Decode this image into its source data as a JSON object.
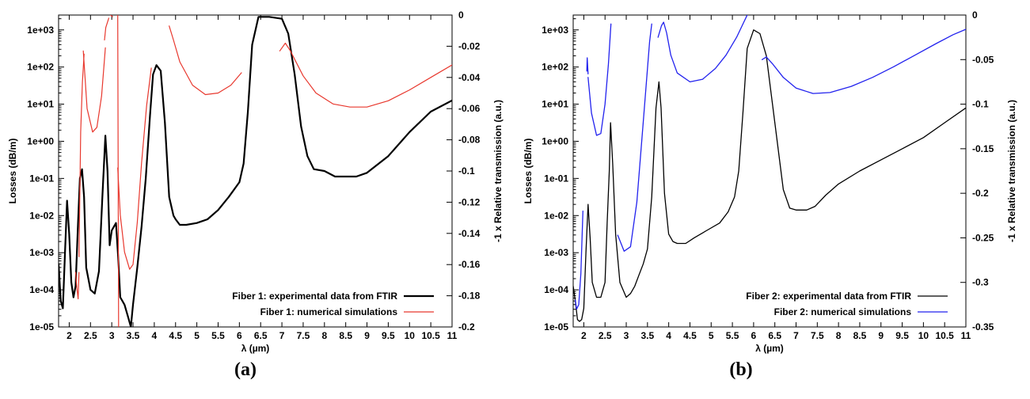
{
  "chart_data": [
    {
      "panel": "(a)",
      "type": "line",
      "xlabel": "λ (µm)",
      "ylabel_left": "Losses (dB/m)",
      "ylabel_right": "-1 x Relative transmission (a.u.)",
      "x_ticks": [
        "2",
        "2.5",
        "3",
        "3.5",
        "4",
        "4.5",
        "5",
        "5.5",
        "6",
        "6.5",
        "7",
        "7.5",
        "8",
        "8.5",
        "9",
        "9.5",
        "10",
        "10.5",
        "11"
      ],
      "y_left_ticks": [
        "1e-05",
        "1e-04",
        "1e-03",
        "1e-02",
        "1e-01",
        "1e+00",
        "1e+01",
        "1e+02",
        "1e+03"
      ],
      "y_right_ticks": [
        "0",
        "-0.02",
        "-0.04",
        "-0.06",
        "-0.08",
        "-0.1",
        "-0.12",
        "-0.14",
        "-0.16",
        "-0.18",
        "-0.2"
      ],
      "xlim": [
        1.75,
        11
      ],
      "ylim_left_log10": [
        -5,
        3.4
      ],
      "ylim_right": [
        -0.2,
        0
      ],
      "grid": false,
      "legend_position": "bottom-right",
      "series": [
        {
          "name": "Fiber 1: experimental data from FTIR",
          "axis": "left",
          "color": "#000000",
          "stroke_width": 2.2,
          "log10_points": [
            [
              1.75,
              -3.3
            ],
            [
              1.8,
              -4.3
            ],
            [
              1.85,
              -4.5
            ],
            [
              1.9,
              -3.0
            ],
            [
              1.95,
              -1.6
            ],
            [
              2.0,
              -2.5
            ],
            [
              2.05,
              -3.8
            ],
            [
              2.1,
              -4.2
            ],
            [
              2.15,
              -3.9
            ],
            [
              2.2,
              -2.4
            ],
            [
              2.25,
              -1.0
            ],
            [
              2.3,
              -0.75
            ],
            [
              2.35,
              -1.5
            ],
            [
              2.4,
              -3.4
            ],
            [
              2.5,
              -4.0
            ],
            [
              2.6,
              -4.1
            ],
            [
              2.7,
              -3.5
            ],
            [
              2.78,
              -1.5
            ],
            [
              2.85,
              0.15
            ],
            [
              2.9,
              -0.8
            ],
            [
              2.95,
              -2.8
            ],
            [
              3.0,
              -2.4
            ],
            [
              3.05,
              -2.3
            ],
            [
              3.1,
              -2.2
            ],
            [
              3.15,
              -3.1
            ],
            [
              3.2,
              -4.2
            ],
            [
              3.3,
              -4.4
            ],
            [
              3.4,
              -4.8
            ],
            [
              3.45,
              -5.0
            ],
            [
              3.5,
              -4.4
            ],
            [
              3.6,
              -3.4
            ],
            [
              3.7,
              -2.3
            ],
            [
              3.8,
              -1.0
            ],
            [
              3.9,
              0.7
            ],
            [
              3.97,
              1.8
            ],
            [
              4.05,
              2.05
            ],
            [
              4.15,
              1.9
            ],
            [
              4.25,
              0.5
            ],
            [
              4.35,
              -1.5
            ],
            [
              4.45,
              -2.0
            ],
            [
              4.5,
              -2.1
            ],
            [
              4.6,
              -2.25
            ],
            [
              4.75,
              -2.25
            ],
            [
              5.0,
              -2.2
            ],
            [
              5.25,
              -2.1
            ],
            [
              5.5,
              -1.85
            ],
            [
              5.75,
              -1.5
            ],
            [
              6.0,
              -1.1
            ],
            [
              6.1,
              -0.6
            ],
            [
              6.2,
              0.8
            ],
            [
              6.3,
              2.6
            ],
            [
              6.45,
              3.35
            ],
            [
              6.7,
              3.35
            ],
            [
              7.0,
              3.3
            ],
            [
              7.15,
              2.9
            ],
            [
              7.3,
              1.8
            ],
            [
              7.45,
              0.4
            ],
            [
              7.6,
              -0.4
            ],
            [
              7.75,
              -0.75
            ],
            [
              8.0,
              -0.8
            ],
            [
              8.25,
              -0.95
            ],
            [
              8.5,
              -0.95
            ],
            [
              8.75,
              -0.95
            ],
            [
              9.0,
              -0.85
            ],
            [
              9.5,
              -0.4
            ],
            [
              10.0,
              0.25
            ],
            [
              10.5,
              0.8
            ],
            [
              11.0,
              1.1
            ]
          ]
        },
        {
          "name": "Fiber 1: numerical simulations",
          "axis": "right",
          "color": "#e8382e",
          "stroke_width": 1.2,
          "segments": [
            [
              [
                2.15,
                -0.165
              ],
              [
                2.18,
                -0.175
              ],
              [
                2.21,
                -0.182
              ],
              [
                2.23,
                -0.165
              ]
            ],
            [
              [
                2.23,
                -0.155
              ],
              [
                2.27,
                -0.075
              ],
              [
                2.31,
                -0.043
              ],
              [
                2.35,
                -0.025
              ]
            ],
            [
              [
                2.33,
                -0.023
              ],
              [
                2.42,
                -0.06
              ],
              [
                2.55,
                -0.075
              ],
              [
                2.65,
                -0.072
              ],
              [
                2.76,
                -0.052
              ],
              [
                2.85,
                -0.021
              ]
            ],
            [
              [
                2.83,
                -0.016
              ],
              [
                2.86,
                -0.008
              ],
              [
                2.93,
                -0.002
              ]
            ],
            [
              [
                2.97,
                0.0
              ],
              [
                3.02,
                -0.001
              ]
            ],
            [
              [
                3.14,
                0.0
              ],
              [
                3.16,
                -0.2
              ]
            ],
            [
              [
                3.14,
                -0.098
              ],
              [
                3.2,
                -0.128
              ],
              [
                3.3,
                -0.152
              ],
              [
                3.42,
                -0.163
              ],
              [
                3.5,
                -0.16
              ],
              [
                3.6,
                -0.133
              ],
              [
                3.7,
                -0.095
              ],
              [
                3.82,
                -0.058
              ],
              [
                3.93,
                -0.034
              ]
            ],
            [
              [
                4.35,
                -0.007
              ],
              [
                4.45,
                -0.016
              ],
              [
                4.6,
                -0.03
              ],
              [
                4.9,
                -0.045
              ],
              [
                5.2,
                -0.051
              ],
              [
                5.5,
                -0.05
              ],
              [
                5.8,
                -0.045
              ],
              [
                6.05,
                -0.037
              ]
            ],
            [
              [
                6.95,
                -0.023
              ],
              [
                7.08,
                -0.018
              ],
              [
                7.2,
                -0.023
              ],
              [
                7.5,
                -0.039
              ],
              [
                7.8,
                -0.05
              ],
              [
                8.2,
                -0.057
              ],
              [
                8.6,
                -0.059
              ],
              [
                9.0,
                -0.059
              ],
              [
                9.5,
                -0.055
              ],
              [
                10.0,
                -0.048
              ],
              [
                10.5,
                -0.04
              ],
              [
                11.0,
                -0.032
              ]
            ]
          ]
        }
      ]
    },
    {
      "panel": "(b)",
      "type": "line",
      "xlabel": "λ (µm)",
      "ylabel_left": "Losses (dB/m)",
      "ylabel_right": "-1 x Relative transmission (a.u.)",
      "x_ticks": [
        "2",
        "2.5",
        "3",
        "3.5",
        "4",
        "4.5",
        "5",
        "5.5",
        "6",
        "6.5",
        "7",
        "7.5",
        "8",
        "8.5",
        "9",
        "9.5",
        "10",
        "10.5",
        "11"
      ],
      "y_left_ticks": [
        "1e-05",
        "1e-04",
        "1e-03",
        "1e-02",
        "1e-01",
        "1e+00",
        "1e+01",
        "1e+02",
        "1e+03"
      ],
      "y_right_ticks": [
        "0",
        "-0.05",
        "-0.1",
        "-0.15",
        "-0.2",
        "-0.25",
        "-0.3",
        "-0.35"
      ],
      "xlim": [
        1.75,
        11
      ],
      "ylim_left_log10": [
        -5,
        3.4
      ],
      "ylim_right": [
        -0.35,
        0
      ],
      "grid": false,
      "legend_position": "bottom-right",
      "series": [
        {
          "name": "Fiber 2: experimental data from FTIR",
          "axis": "left",
          "color": "#000000",
          "stroke_width": 1.3,
          "log10_points": [
            [
              1.75,
              -3.9
            ],
            [
              1.8,
              -4.3
            ],
            [
              1.85,
              -4.8
            ],
            [
              1.9,
              -4.85
            ],
            [
              1.95,
              -4.8
            ],
            [
              2.0,
              -4.5
            ],
            [
              2.05,
              -3.0
            ],
            [
              2.1,
              -1.7
            ],
            [
              2.15,
              -2.6
            ],
            [
              2.2,
              -3.8
            ],
            [
              2.3,
              -4.2
            ],
            [
              2.4,
              -4.2
            ],
            [
              2.5,
              -3.8
            ],
            [
              2.55,
              -2.2
            ],
            [
              2.6,
              -0.8
            ],
            [
              2.63,
              0.5
            ],
            [
              2.68,
              -0.6
            ],
            [
              2.75,
              -2.5
            ],
            [
              2.85,
              -3.8
            ],
            [
              3.0,
              -4.2
            ],
            [
              3.1,
              -4.1
            ],
            [
              3.2,
              -3.9
            ],
            [
              3.3,
              -3.6
            ],
            [
              3.4,
              -3.3
            ],
            [
              3.5,
              -2.9
            ],
            [
              3.6,
              -1.5
            ],
            [
              3.7,
              0.9
            ],
            [
              3.77,
              1.6
            ],
            [
              3.82,
              0.9
            ],
            [
              3.9,
              -1.4
            ],
            [
              4.0,
              -2.5
            ],
            [
              4.1,
              -2.7
            ],
            [
              4.2,
              -2.75
            ],
            [
              4.4,
              -2.75
            ],
            [
              4.6,
              -2.6
            ],
            [
              4.9,
              -2.4
            ],
            [
              5.2,
              -2.2
            ],
            [
              5.4,
              -1.9
            ],
            [
              5.55,
              -1.5
            ],
            [
              5.65,
              -0.8
            ],
            [
              5.75,
              0.8
            ],
            [
              5.85,
              2.5
            ],
            [
              6.0,
              3.0
            ],
            [
              6.15,
              2.9
            ],
            [
              6.3,
              2.3
            ],
            [
              6.5,
              0.5
            ],
            [
              6.7,
              -1.3
            ],
            [
              6.85,
              -1.8
            ],
            [
              7.0,
              -1.85
            ],
            [
              7.25,
              -1.85
            ],
            [
              7.45,
              -1.75
            ],
            [
              7.7,
              -1.45
            ],
            [
              8.0,
              -1.15
            ],
            [
              8.5,
              -0.8
            ],
            [
              9.0,
              -0.5
            ],
            [
              9.5,
              -0.2
            ],
            [
              10.0,
              0.1
            ],
            [
              10.5,
              0.5
            ],
            [
              11.0,
              0.9
            ]
          ]
        },
        {
          "name": "Fiber 2: numerical simulations",
          "axis": "right",
          "color": "#2222ee",
          "stroke_width": 1.3,
          "segments": [
            [
              [
                1.8,
                -0.32
              ],
              [
                1.83,
                -0.33
              ],
              [
                1.88,
                -0.325
              ],
              [
                1.93,
                -0.29
              ],
              [
                1.98,
                -0.22
              ]
            ],
            [
              [
                2.07,
                -0.063
              ],
              [
                2.08,
                -0.048
              ],
              [
                2.1,
                -0.066
              ]
            ],
            [
              [
                2.1,
                -0.07
              ],
              [
                2.18,
                -0.11
              ],
              [
                2.3,
                -0.135
              ],
              [
                2.4,
                -0.133
              ],
              [
                2.5,
                -0.1
              ],
              [
                2.58,
                -0.055
              ],
              [
                2.64,
                -0.01
              ]
            ],
            [
              [
                2.8,
                -0.247
              ],
              [
                2.95,
                -0.265
              ],
              [
                3.1,
                -0.26
              ],
              [
                3.25,
                -0.21
              ],
              [
                3.4,
                -0.12
              ],
              [
                3.55,
                -0.03
              ],
              [
                3.6,
                -0.01
              ]
            ],
            [
              [
                3.75,
                -0.025
              ],
              [
                3.83,
                -0.012
              ],
              [
                3.88,
                -0.008
              ],
              [
                3.95,
                -0.02
              ],
              [
                4.05,
                -0.045
              ],
              [
                4.2,
                -0.065
              ],
              [
                4.5,
                -0.075
              ],
              [
                4.8,
                -0.072
              ],
              [
                5.1,
                -0.06
              ],
              [
                5.35,
                -0.045
              ],
              [
                5.6,
                -0.025
              ],
              [
                5.85,
                0.0
              ]
            ],
            [
              [
                6.2,
                -0.05
              ],
              [
                6.3,
                -0.047
              ],
              [
                6.45,
                -0.055
              ],
              [
                6.7,
                -0.07
              ],
              [
                7.0,
                -0.082
              ],
              [
                7.4,
                -0.088
              ],
              [
                7.8,
                -0.087
              ],
              [
                8.3,
                -0.08
              ],
              [
                8.8,
                -0.07
              ],
              [
                9.3,
                -0.058
              ],
              [
                9.8,
                -0.045
              ],
              [
                10.3,
                -0.032
              ],
              [
                10.7,
                -0.022
              ],
              [
                11.0,
                -0.016
              ]
            ]
          ]
        }
      ]
    }
  ],
  "panel_labels": {
    "a": "(a)",
    "b": "(b)"
  }
}
